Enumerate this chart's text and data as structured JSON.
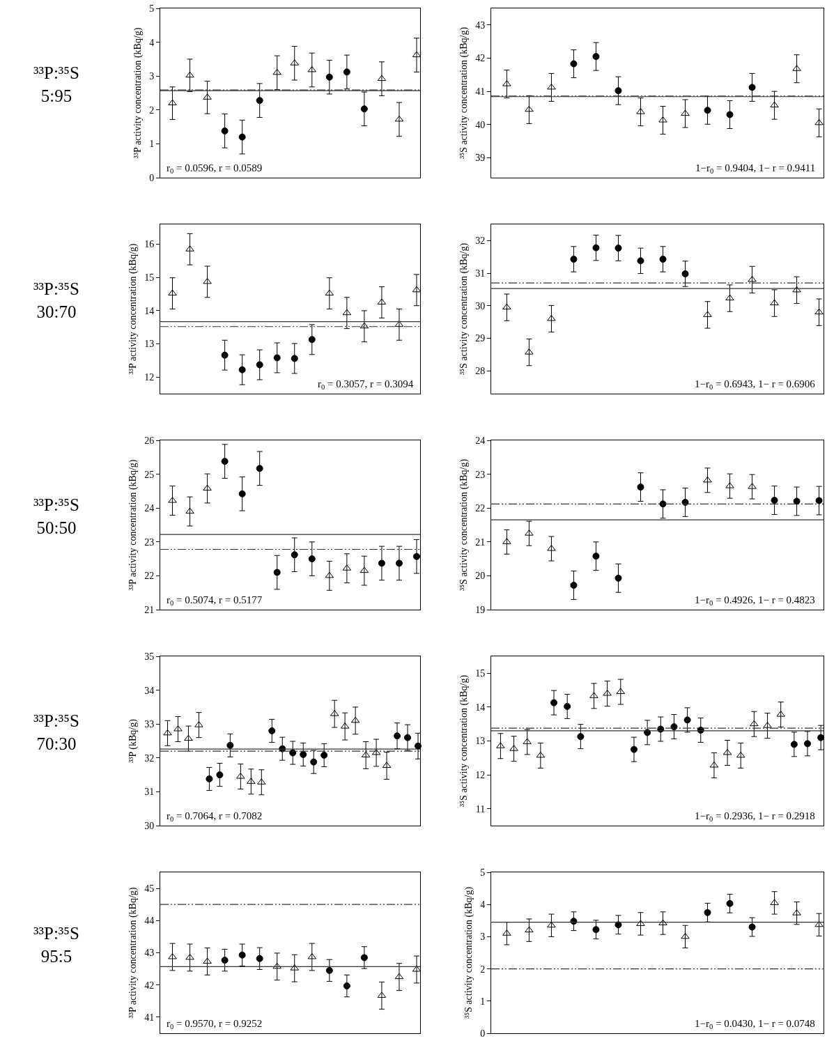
{
  "chart_data": [
    {
      "type": "scatter",
      "categories": [
        null,
        null,
        null,
        null,
        null,
        null,
        null,
        null,
        null,
        null,
        null,
        null,
        null,
        null,
        null
      ],
      "ylabel": "³³P activity concentration (kBq/g)",
      "ylim": [
        0,
        5
      ],
      "yticks": [
        0,
        1,
        2,
        3,
        4,
        5
      ],
      "tick_labels": "y",
      "grid": false,
      "legend": false,
      "series": [
        {
          "color": "#000000",
          "marker": "triangle",
          "values": [
            2.2,
            3.02,
            2.37,
            null,
            null,
            null,
            3.1,
            3.38,
            3.18,
            null,
            null,
            null,
            2.92,
            1.72,
            3.62
          ],
          "errors": [
            0.48,
            0.48,
            0.48,
            null,
            null,
            null,
            0.5,
            0.5,
            0.5,
            null,
            null,
            null,
            0.5,
            0.5,
            0.5
          ]
        },
        {
          "color": "#000000",
          "marker": "circle",
          "values": [
            null,
            null,
            null,
            1.38,
            1.2,
            2.28,
            null,
            null,
            null,
            2.97,
            3.12,
            2.03,
            null,
            null,
            null
          ],
          "errors": [
            null,
            null,
            null,
            0.5,
            0.5,
            0.5,
            null,
            null,
            null,
            0.5,
            0.5,
            0.5,
            null,
            null,
            null
          ]
        }
      ],
      "ref_lines": [
        {
          "axis": "y",
          "value": 2.57,
          "line_style": "solid"
        },
        {
          "axis": "y",
          "value": 2.59,
          "line_style": "dashed"
        }
      ],
      "annotations": [
        "³³P:³⁵S\n5:95",
        "r$_{0}$ = 0.0596, r = 0.0589"
      ]
    },
    {
      "type": "scatter",
      "categories": [
        null,
        null,
        null,
        null,
        null,
        null,
        null,
        null,
        null,
        null,
        null,
        null,
        null,
        null,
        null
      ],
      "ylabel": "³⁵S activity concentration (kBq/g)",
      "ylim": [
        38.4,
        43.5
      ],
      "yticks": [
        39,
        40,
        41,
        42,
        43
      ],
      "tick_labels": "y",
      "grid": false,
      "legend": false,
      "series": [
        {
          "color": "#000000",
          "marker": "triangle",
          "values": [
            41.22,
            40.45,
            41.12,
            null,
            null,
            null,
            40.38,
            40.13,
            40.33,
            null,
            null,
            null,
            40.58,
            41.68,
            40.05
          ],
          "errors": [
            0.42,
            0.42,
            0.42,
            null,
            null,
            null,
            0.42,
            0.42,
            0.42,
            null,
            null,
            null,
            0.42,
            0.42,
            0.42
          ]
        },
        {
          "color": "#000000",
          "marker": "circle",
          "values": [
            null,
            null,
            null,
            41.83,
            42.05,
            41.02,
            null,
            null,
            null,
            40.43,
            40.3,
            41.12,
            null,
            null,
            null
          ],
          "errors": [
            null,
            null,
            null,
            0.42,
            0.42,
            0.42,
            null,
            null,
            null,
            0.42,
            0.42,
            0.42,
            null,
            null,
            null
          ]
        }
      ],
      "ref_lines": [
        {
          "axis": "y",
          "value": 40.84,
          "line_style": "solid"
        },
        {
          "axis": "y",
          "value": 40.86,
          "line_style": "dashed"
        }
      ],
      "annotations": [
        "1−r$_{0}$ = 0.9404, 1− r = 0.9411"
      ]
    },
    {
      "type": "scatter",
      "categories": [
        null,
        null,
        null,
        null,
        null,
        null,
        null,
        null,
        null,
        null,
        null,
        null,
        null,
        null,
        null
      ],
      "ylabel": "³³P activity concentration (kBq/g)",
      "ylim": [
        11.5,
        16.6
      ],
      "yticks": [
        12,
        13,
        14,
        15,
        16
      ],
      "tick_labels": "y",
      "grid": false,
      "legend": false,
      "series": [
        {
          "color": "#000000",
          "marker": "triangle",
          "values": [
            14.52,
            15.85,
            14.87,
            null,
            null,
            null,
            null,
            null,
            null,
            14.52,
            13.93,
            13.53,
            14.25,
            13.58,
            14.62
          ],
          "errors": [
            0.47,
            0.47,
            0.47,
            null,
            null,
            null,
            null,
            null,
            null,
            0.47,
            0.47,
            0.47,
            0.47,
            0.47,
            0.47
          ]
        },
        {
          "color": "#000000",
          "marker": "circle",
          "values": [
            null,
            null,
            null,
            12.66,
            12.22,
            12.37,
            12.58,
            12.56,
            13.13,
            null,
            null,
            null,
            null,
            null,
            null
          ],
          "errors": [
            null,
            null,
            null,
            0.45,
            0.45,
            0.45,
            0.45,
            0.45,
            0.45,
            null,
            null,
            null,
            null,
            null,
            null
          ]
        }
      ],
      "ref_lines": [
        {
          "axis": "y",
          "value": 13.67,
          "line_style": "solid"
        },
        {
          "axis": "y",
          "value": 13.52,
          "line_style": "dashed"
        }
      ],
      "annotations": [
        "³³P:³⁵S\n30:70",
        "r$_{0}$ = 0.3057, r = 0.3094"
      ]
    },
    {
      "type": "scatter",
      "categories": [
        null,
        null,
        null,
        null,
        null,
        null,
        null,
        null,
        null,
        null,
        null,
        null,
        null,
        null,
        null
      ],
      "ylabel": "³⁵S activity concentration (kBq/g)",
      "ylim": [
        27.3,
        32.5
      ],
      "yticks": [
        28,
        29,
        30,
        31,
        32
      ],
      "tick_labels": "y",
      "grid": false,
      "legend": false,
      "series": [
        {
          "color": "#000000",
          "marker": "triangle",
          "values": [
            29.95,
            28.57,
            29.6,
            null,
            null,
            null,
            null,
            null,
            null,
            29.72,
            30.23,
            30.8,
            30.08,
            30.48,
            29.8
          ],
          "errors": [
            0.41,
            0.41,
            0.41,
            null,
            null,
            null,
            null,
            null,
            null,
            0.41,
            0.41,
            0.41,
            0.41,
            0.41,
            0.41
          ]
        },
        {
          "color": "#000000",
          "marker": "circle",
          "values": [
            null,
            null,
            null,
            31.43,
            31.78,
            31.77,
            31.38,
            31.43,
            30.98,
            null,
            null,
            null,
            null,
            null,
            null
          ],
          "errors": [
            null,
            null,
            null,
            0.39,
            0.39,
            0.39,
            0.39,
            0.39,
            0.39,
            null,
            null,
            null,
            null,
            null,
            null
          ]
        }
      ],
      "ref_lines": [
        {
          "axis": "y",
          "value": 30.53,
          "line_style": "solid"
        },
        {
          "axis": "y",
          "value": 30.7,
          "line_style": "dashed"
        }
      ],
      "annotations": [
        "1−r$_{0}$ = 0.6943, 1− r = 0.6906"
      ]
    },
    {
      "type": "scatter",
      "categories": [
        null,
        null,
        null,
        null,
        null,
        null,
        null,
        null,
        null,
        null,
        null,
        null,
        null,
        null,
        null
      ],
      "ylabel": "³³P activity concentration (kBq/g)",
      "ylim": [
        21,
        26
      ],
      "yticks": [
        21,
        22,
        23,
        24,
        25,
        26
      ],
      "tick_labels": "y",
      "grid": false,
      "legend": false,
      "series": [
        {
          "color": "#000000",
          "marker": "triangle",
          "values": [
            24.22,
            23.9,
            24.58,
            null,
            null,
            null,
            null,
            null,
            null,
            22.0,
            22.22,
            22.15,
            null,
            null,
            null
          ],
          "errors": [
            0.43,
            0.43,
            0.43,
            null,
            null,
            null,
            null,
            null,
            null,
            0.43,
            0.43,
            0.43,
            null,
            null,
            null
          ]
        },
        {
          "color": "#000000",
          "marker": "circle",
          "values": [
            null,
            null,
            null,
            25.38,
            24.42,
            25.17,
            22.1,
            22.62,
            22.5,
            null,
            null,
            null,
            22.37,
            22.37,
            22.57
          ],
          "errors": [
            null,
            null,
            null,
            0.5,
            0.5,
            0.5,
            0.5,
            0.5,
            0.5,
            null,
            null,
            null,
            0.5,
            0.5,
            0.5
          ]
        }
      ],
      "ref_lines": [
        {
          "axis": "y",
          "value": 23.22,
          "line_style": "solid"
        },
        {
          "axis": "y",
          "value": 22.78,
          "line_style": "dashed"
        }
      ],
      "annotations": [
        "³³P:³⁵S\n50:50",
        "r$_{0}$ = 0.5074, r = 0.5177"
      ]
    },
    {
      "type": "scatter",
      "categories": [
        null,
        null,
        null,
        null,
        null,
        null,
        null,
        null,
        null,
        null,
        null,
        null,
        null,
        null,
        null
      ],
      "ylabel": "³⁵S activity concentration (kBq/g)",
      "ylim": [
        19,
        24
      ],
      "yticks": [
        19,
        20,
        21,
        22,
        23,
        24
      ],
      "tick_labels": "y",
      "grid": false,
      "legend": false,
      "series": [
        {
          "color": "#000000",
          "marker": "triangle",
          "values": [
            21.0,
            21.25,
            20.8,
            null,
            null,
            null,
            null,
            null,
            null,
            22.82,
            22.65,
            22.63,
            null,
            null,
            null
          ],
          "errors": [
            0.36,
            0.36,
            0.36,
            null,
            null,
            null,
            null,
            null,
            null,
            0.36,
            0.36,
            0.36,
            null,
            null,
            null
          ]
        },
        {
          "color": "#000000",
          "marker": "circle",
          "values": [
            null,
            null,
            null,
            19.72,
            20.58,
            19.93,
            22.62,
            22.12,
            22.17,
            null,
            null,
            null,
            22.23,
            22.2,
            22.22
          ],
          "errors": [
            null,
            null,
            null,
            0.42,
            0.42,
            0.42,
            0.42,
            0.42,
            0.42,
            null,
            null,
            null,
            0.42,
            0.42,
            0.42
          ]
        }
      ],
      "ref_lines": [
        {
          "axis": "y",
          "value": 21.65,
          "line_style": "solid"
        },
        {
          "axis": "y",
          "value": 22.12,
          "line_style": "dashed"
        }
      ],
      "annotations": [
        "1−r$_{0}$ = 0.4926, 1− r = 0.4823"
      ]
    },
    {
      "type": "scatter",
      "categories": [
        null,
        null,
        null,
        null,
        null,
        null,
        null,
        null,
        null,
        null,
        null,
        null,
        null,
        null,
        null,
        null,
        null,
        null,
        null,
        null,
        null,
        null,
        null,
        null,
        null
      ],
      "ylabel": "³³P (kBq/g)",
      "ylim": [
        30,
        35
      ],
      "yticks": [
        30,
        31,
        32,
        33,
        34,
        35
      ],
      "tick_labels": "y",
      "grid": false,
      "legend": false,
      "series": [
        {
          "color": "#000000",
          "marker": "triangle",
          "values": [
            32.73,
            32.85,
            32.57,
            32.97,
            null,
            null,
            null,
            31.45,
            31.3,
            31.28,
            null,
            null,
            null,
            null,
            null,
            null,
            33.3,
            32.93,
            33.1,
            32.08,
            32.15,
            31.77,
            null,
            null,
            null
          ],
          "errors": [
            0.37,
            0.37,
            0.37,
            0.37,
            null,
            null,
            null,
            0.37,
            0.37,
            0.37,
            null,
            null,
            null,
            null,
            null,
            null,
            0.4,
            0.4,
            0.4,
            0.4,
            0.4,
            0.4,
            null,
            null,
            null
          ]
        },
        {
          "color": "#000000",
          "marker": "circle",
          "values": [
            null,
            null,
            null,
            null,
            31.38,
            31.5,
            32.37,
            null,
            null,
            null,
            32.8,
            32.27,
            32.15,
            32.1,
            31.88,
            32.08,
            null,
            null,
            null,
            null,
            null,
            null,
            32.65,
            32.6,
            32.35
          ],
          "errors": [
            null,
            null,
            null,
            null,
            0.34,
            0.34,
            0.34,
            null,
            null,
            null,
            0.34,
            0.34,
            0.34,
            0.34,
            0.34,
            0.34,
            null,
            null,
            null,
            null,
            null,
            null,
            0.38,
            0.38,
            0.38
          ]
        }
      ],
      "ref_lines": [
        {
          "axis": "y",
          "value": 32.26,
          "line_style": "solid"
        },
        {
          "axis": "y",
          "value": 32.2,
          "line_style": "dashed"
        }
      ],
      "annotations": [
        "³³P:³⁵S\n70:30",
        "r$_{0}$ = 0.7064, r = 0.7082"
      ]
    },
    {
      "type": "scatter",
      "categories": [
        null,
        null,
        null,
        null,
        null,
        null,
        null,
        null,
        null,
        null,
        null,
        null,
        null,
        null,
        null,
        null,
        null,
        null,
        null,
        null,
        null,
        null,
        null,
        null,
        null
      ],
      "ylabel": "³⁵S activity concentration (kBq/g)",
      "ylim": [
        10.5,
        15.5
      ],
      "yticks": [
        11,
        12,
        13,
        14,
        15
      ],
      "tick_labels": "y",
      "grid": false,
      "legend": false,
      "series": [
        {
          "color": "#000000",
          "marker": "triangle",
          "values": [
            12.85,
            12.77,
            12.97,
            12.57,
            null,
            null,
            null,
            14.33,
            14.4,
            14.45,
            null,
            null,
            null,
            null,
            null,
            null,
            12.28,
            12.65,
            12.57,
            13.5,
            13.45,
            13.78,
            null,
            null,
            null
          ],
          "errors": [
            0.37,
            0.37,
            0.37,
            0.37,
            null,
            null,
            null,
            0.37,
            0.37,
            0.37,
            null,
            null,
            null,
            null,
            null,
            null,
            0.37,
            0.37,
            0.37,
            0.37,
            0.37,
            0.37,
            null,
            null,
            null
          ]
        },
        {
          "color": "#000000",
          "marker": "circle",
          "values": [
            null,
            null,
            null,
            null,
            14.13,
            14.02,
            13.13,
            null,
            null,
            null,
            12.75,
            13.25,
            13.35,
            13.42,
            13.62,
            13.32,
            null,
            null,
            null,
            null,
            null,
            null,
            12.9,
            12.92,
            13.1
          ],
          "errors": [
            null,
            null,
            null,
            null,
            0.36,
            0.36,
            0.36,
            null,
            null,
            null,
            0.36,
            0.36,
            0.36,
            0.36,
            0.36,
            0.36,
            null,
            null,
            null,
            null,
            null,
            null,
            0.36,
            0.36,
            0.36
          ]
        }
      ],
      "ref_lines": [
        {
          "axis": "y",
          "value": 13.3,
          "line_style": "solid"
        },
        {
          "axis": "y",
          "value": 13.38,
          "line_style": "dashed"
        }
      ],
      "annotations": [
        "1−r$_{0}$ = 0.2936, 1− r = 0.2918"
      ]
    },
    {
      "type": "scatter",
      "categories": [
        null,
        null,
        null,
        null,
        null,
        null,
        null,
        null,
        null,
        null,
        null,
        null,
        null,
        null,
        null
      ],
      "ylabel": "³³P activity concentration (kBq/g)",
      "ylim": [
        40.5,
        45.5
      ],
      "yticks": [
        41,
        42,
        43,
        44,
        45
      ],
      "tick_labels": "y",
      "grid": false,
      "legend": false,
      "series": [
        {
          "color": "#000000",
          "marker": "triangle",
          "values": [
            42.87,
            42.85,
            42.73,
            null,
            null,
            null,
            42.57,
            42.52,
            42.87,
            null,
            null,
            null,
            41.67,
            42.25,
            42.48
          ],
          "errors": [
            0.42,
            0.42,
            0.42,
            null,
            null,
            null,
            0.42,
            0.42,
            0.42,
            null,
            null,
            null,
            0.42,
            0.42,
            0.42
          ]
        },
        {
          "color": "#000000",
          "marker": "circle",
          "values": [
            null,
            null,
            null,
            42.77,
            42.93,
            42.82,
            null,
            null,
            null,
            42.45,
            41.97,
            42.85,
            null,
            null,
            null
          ],
          "errors": [
            null,
            null,
            null,
            0.34,
            0.34,
            0.34,
            null,
            null,
            null,
            0.34,
            0.34,
            0.34,
            null,
            null,
            null
          ]
        }
      ],
      "ref_lines": [
        {
          "axis": "y",
          "value": 42.57,
          "line_style": "solid"
        },
        {
          "axis": "y",
          "value": 44.5,
          "line_style": "dashed"
        }
      ],
      "annotations": [
        "³³P:³⁵S\n95:5",
        "r$_{0}$ = 0.9570, r = 0.9252"
      ]
    },
    {
      "type": "scatter",
      "categories": [
        null,
        null,
        null,
        null,
        null,
        null,
        null,
        null,
        null,
        null,
        null,
        null,
        null,
        null,
        null
      ],
      "ylabel": "³⁵S activity concentration (kBq/g)",
      "ylim": [
        0,
        5
      ],
      "yticks": [
        0,
        1,
        2,
        3,
        4,
        5
      ],
      "tick_labels": "y",
      "grid": false,
      "legend": false,
      "series": [
        {
          "color": "#000000",
          "marker": "triangle",
          "values": [
            3.1,
            3.2,
            3.35,
            null,
            null,
            null,
            3.4,
            3.42,
            3.0,
            null,
            null,
            null,
            4.05,
            3.73,
            3.37
          ],
          "errors": [
            0.35,
            0.35,
            0.35,
            null,
            null,
            null,
            0.35,
            0.35,
            0.35,
            null,
            null,
            null,
            0.35,
            0.35,
            0.35
          ]
        },
        {
          "color": "#000000",
          "marker": "circle",
          "values": [
            null,
            null,
            null,
            3.48,
            3.22,
            3.37,
            null,
            null,
            null,
            3.75,
            4.03,
            3.3,
            null,
            null,
            null
          ],
          "errors": [
            null,
            null,
            null,
            0.29,
            0.29,
            0.29,
            null,
            null,
            null,
            0.29,
            0.29,
            0.29,
            null,
            null,
            null
          ]
        }
      ],
      "ref_lines": [
        {
          "axis": "y",
          "value": 3.45,
          "line_style": "solid"
        },
        {
          "axis": "y",
          "value": 2.0,
          "line_style": "dashed"
        }
      ],
      "annotations": [
        "1−r$_{0}$ = 0.0430, 1− r = 0.0748"
      ]
    }
  ]
}
